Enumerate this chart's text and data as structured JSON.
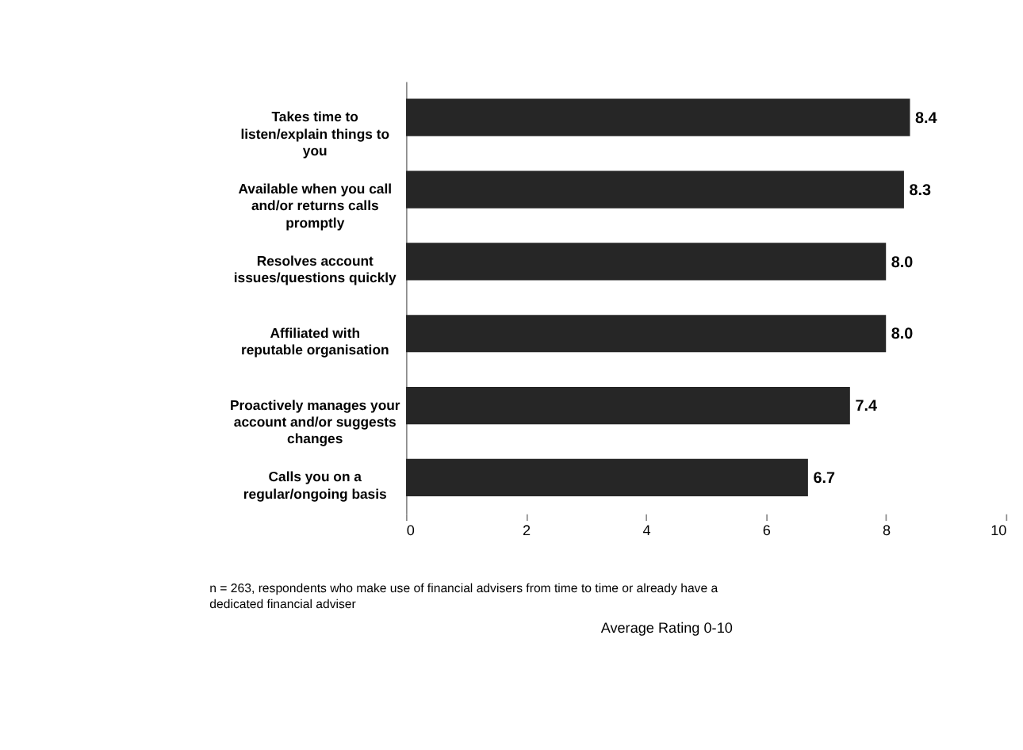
{
  "chart_data": {
    "type": "bar",
    "orientation": "horizontal",
    "categories": [
      "Takes time to listen/explain things to you",
      "Available when you call and/or returns calls promptly",
      "Resolves account issues/questions quickly",
      "Affiliated with reputable organisation",
      "Proactively manages your account and/or suggests changes",
      "Calls you on a regular/ongoing basis"
    ],
    "values": [
      8.4,
      8.3,
      8.0,
      8.0,
      7.4,
      6.7
    ],
    "value_labels": [
      "8.4",
      "8.3",
      "8.0",
      "8.0",
      "7.4",
      "6.7"
    ],
    "color": "#262626",
    "xlim": [
      0,
      10
    ],
    "xticks": [
      0,
      2,
      4,
      6,
      8,
      10
    ],
    "grid": false,
    "annotations": [
      "n = 263, respondents who make use of financial advisers from time to time or already have a dedicated financial adviser",
      "Average Rating 0-10"
    ]
  }
}
